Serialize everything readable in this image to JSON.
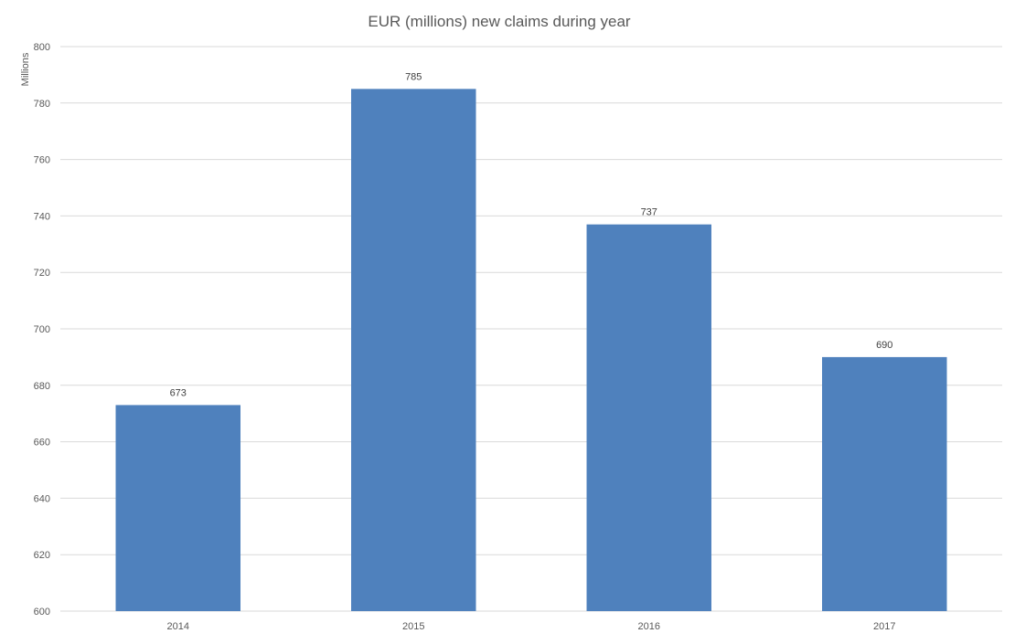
{
  "chart_data": {
    "type": "bar",
    "title": "EUR (millions) new claims during year",
    "xlabel": "",
    "ylabel": "Millions",
    "categories": [
      "2014",
      "2015",
      "2016",
      "2017"
    ],
    "values": [
      673,
      785,
      737,
      690
    ],
    "data_labels": [
      "673",
      "785",
      "737",
      "690"
    ],
    "ylim": [
      600,
      800
    ],
    "y_ticks": [
      600,
      620,
      640,
      660,
      680,
      700,
      720,
      740,
      760,
      780,
      800
    ],
    "grid": true,
    "legend": "none",
    "colors": {
      "bar": "#4f81bd",
      "gridline": "#d9d9d9",
      "text": "#595959"
    }
  }
}
